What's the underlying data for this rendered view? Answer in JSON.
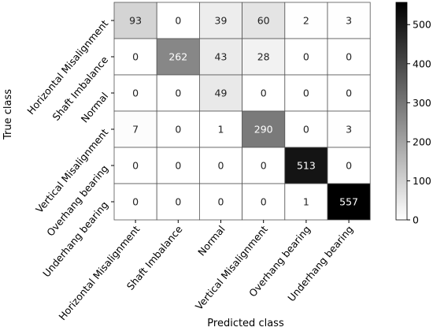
{
  "chart_data": {
    "type": "heatmap",
    "xlabel": "Predicted class",
    "ylabel": "True class",
    "x_categories": [
      "Horizontal Misalignment",
      "Shaft Imbalance",
      "Normal",
      "Vertical Misalignment",
      "Overhang bearing",
      "Underhang bearing"
    ],
    "y_categories": [
      "Horizontal Misalignment",
      "Shaft Imbalance",
      "Normal",
      "Vertical Misalignment",
      "Overhang bearing",
      "Underhang bearing"
    ],
    "matrix": [
      [
        93,
        0,
        39,
        60,
        2,
        3
      ],
      [
        0,
        262,
        43,
        28,
        0,
        0
      ],
      [
        0,
        0,
        49,
        0,
        0,
        0
      ],
      [
        7,
        0,
        1,
        290,
        0,
        3
      ],
      [
        0,
        0,
        0,
        0,
        513,
        0
      ],
      [
        0,
        0,
        0,
        0,
        1,
        557
      ]
    ],
    "colormap": "Greys",
    "vmin": 0,
    "vmax": 557,
    "colorbar_ticks": [
      0,
      100,
      200,
      300,
      400,
      500
    ],
    "grid": true
  }
}
